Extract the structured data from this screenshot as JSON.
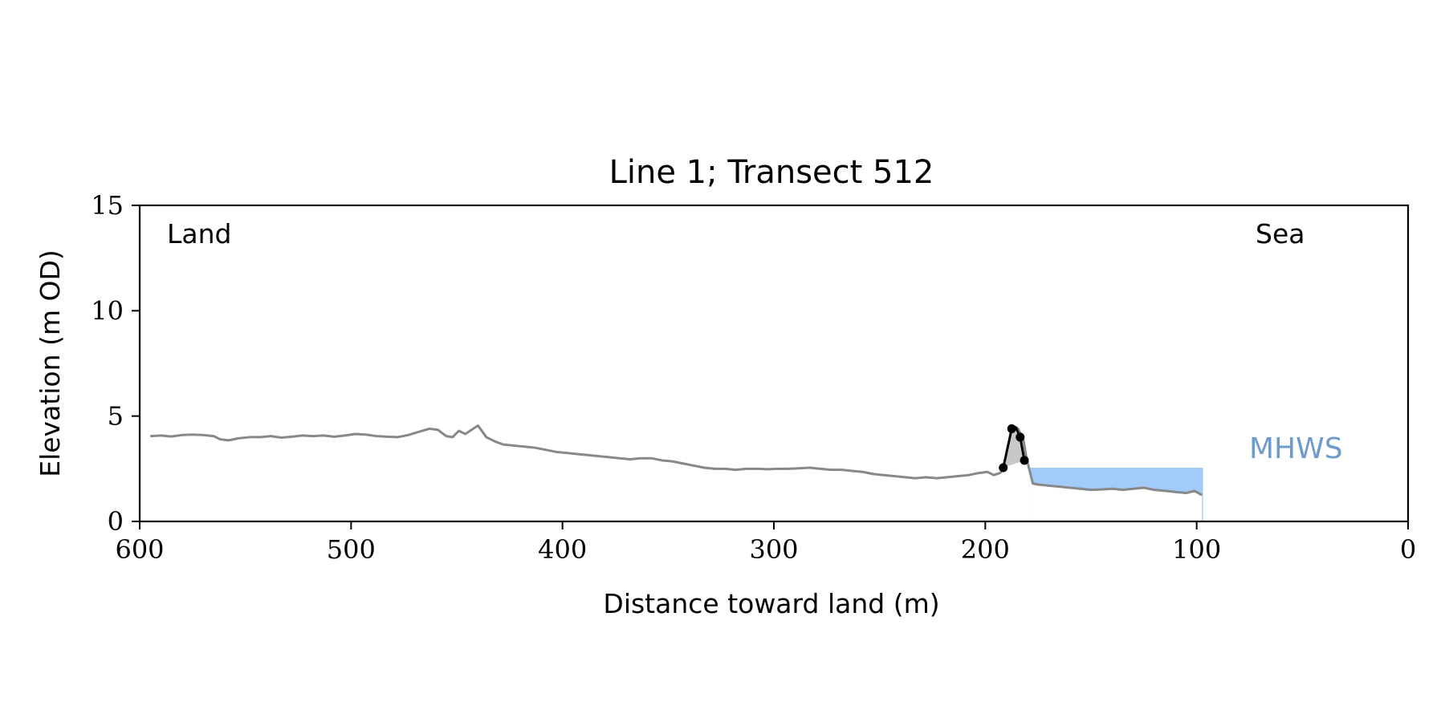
{
  "chart_data": {
    "type": "line",
    "title": "Line 1; Transect 512",
    "xlabel": "Distance toward land (m)",
    "ylabel": "Elevation (m OD)",
    "xlim": [
      600,
      0
    ],
    "ylim": [
      0,
      15
    ],
    "x_ticks": [
      600,
      500,
      400,
      300,
      200,
      100,
      0
    ],
    "y_ticks": [
      0,
      5,
      10,
      15
    ],
    "annotations": {
      "left": "Land",
      "right": "Sea"
    },
    "grid": false,
    "series": [
      {
        "kind": "profile",
        "color": "#888888",
        "points": [
          [
            595,
            4.05
          ],
          [
            590,
            4.08
          ],
          [
            585,
            4.03
          ],
          [
            580,
            4.1
          ],
          [
            575,
            4.12
          ],
          [
            570,
            4.1
          ],
          [
            565,
            4.05
          ],
          [
            562,
            3.9
          ],
          [
            558,
            3.85
          ],
          [
            553,
            3.95
          ],
          [
            548,
            4.0
          ],
          [
            543,
            4.0
          ],
          [
            538,
            4.05
          ],
          [
            533,
            3.98
          ],
          [
            528,
            4.02
          ],
          [
            523,
            4.08
          ],
          [
            518,
            4.05
          ],
          [
            513,
            4.08
          ],
          [
            508,
            4.02
          ],
          [
            503,
            4.08
          ],
          [
            498,
            4.15
          ],
          [
            493,
            4.12
          ],
          [
            488,
            4.05
          ],
          [
            483,
            4.02
          ],
          [
            478,
            4.0
          ],
          [
            473,
            4.1
          ],
          [
            468,
            4.25
          ],
          [
            463,
            4.4
          ],
          [
            459,
            4.35
          ],
          [
            455,
            4.05
          ],
          [
            452,
            4.0
          ],
          [
            449,
            4.3
          ],
          [
            446,
            4.15
          ],
          [
            443,
            4.35
          ],
          [
            440,
            4.55
          ],
          [
            436,
            4.0
          ],
          [
            432,
            3.8
          ],
          [
            428,
            3.65
          ],
          [
            423,
            3.6
          ],
          [
            418,
            3.55
          ],
          [
            413,
            3.5
          ],
          [
            408,
            3.4
          ],
          [
            403,
            3.3
          ],
          [
            398,
            3.25
          ],
          [
            393,
            3.2
          ],
          [
            388,
            3.15
          ],
          [
            383,
            3.1
          ],
          [
            378,
            3.05
          ],
          [
            373,
            3.0
          ],
          [
            368,
            2.95
          ],
          [
            363,
            3.0
          ],
          [
            358,
            3.0
          ],
          [
            353,
            2.9
          ],
          [
            348,
            2.85
          ],
          [
            343,
            2.75
          ],
          [
            338,
            2.65
          ],
          [
            333,
            2.55
          ],
          [
            328,
            2.5
          ],
          [
            323,
            2.5
          ],
          [
            318,
            2.45
          ],
          [
            313,
            2.5
          ],
          [
            308,
            2.5
          ],
          [
            303,
            2.48
          ],
          [
            298,
            2.5
          ],
          [
            293,
            2.5
          ],
          [
            288,
            2.52
          ],
          [
            283,
            2.55
          ],
          [
            278,
            2.5
          ],
          [
            273,
            2.45
          ],
          [
            268,
            2.45
          ],
          [
            263,
            2.4
          ],
          [
            258,
            2.35
          ],
          [
            253,
            2.25
          ],
          [
            248,
            2.2
          ],
          [
            243,
            2.15
          ],
          [
            238,
            2.1
          ],
          [
            233,
            2.05
          ],
          [
            228,
            2.1
          ],
          [
            223,
            2.05
          ],
          [
            218,
            2.1
          ],
          [
            213,
            2.15
          ],
          [
            208,
            2.2
          ],
          [
            203,
            2.3
          ],
          [
            199,
            2.35
          ],
          [
            196,
            2.2
          ],
          [
            193,
            2.3
          ],
          [
            190.5,
            2.6
          ],
          [
            188,
            3.8
          ],
          [
            186,
            4.5
          ],
          [
            184.5,
            4.4
          ],
          [
            182,
            3.9
          ],
          [
            180.5,
            3.0
          ],
          [
            179,
            2.4
          ],
          [
            177.5,
            1.8
          ],
          [
            175,
            1.75
          ],
          [
            170,
            1.7
          ],
          [
            165,
            1.65
          ],
          [
            160,
            1.6
          ],
          [
            155,
            1.55
          ],
          [
            150,
            1.5
          ],
          [
            145,
            1.52
          ],
          [
            140,
            1.55
          ],
          [
            135,
            1.5
          ],
          [
            130,
            1.55
          ],
          [
            125,
            1.6
          ],
          [
            120,
            1.5
          ],
          [
            115,
            1.45
          ],
          [
            110,
            1.4
          ],
          [
            105,
            1.35
          ],
          [
            101,
            1.45
          ],
          [
            97.5,
            1.25
          ]
        ]
      },
      {
        "kind": "dune-crest",
        "color": "#000000",
        "fill": "#c8c8c8",
        "points": [
          [
            191.5,
            2.55
          ],
          [
            187.5,
            4.4
          ],
          [
            185.5,
            4.45
          ],
          [
            183.5,
            4.0
          ],
          [
            181.5,
            2.9
          ]
        ],
        "markers": [
          [
            191.5,
            2.55
          ],
          [
            187.5,
            4.4
          ],
          [
            183.5,
            4.0
          ],
          [
            181.5,
            2.9
          ]
        ]
      }
    ],
    "mhws": {
      "label": "MHWS",
      "color": "#a0cbfa",
      "label_color": "#6e9bcc",
      "level": 2.55,
      "x_from": 179,
      "x_to": 97
    }
  }
}
